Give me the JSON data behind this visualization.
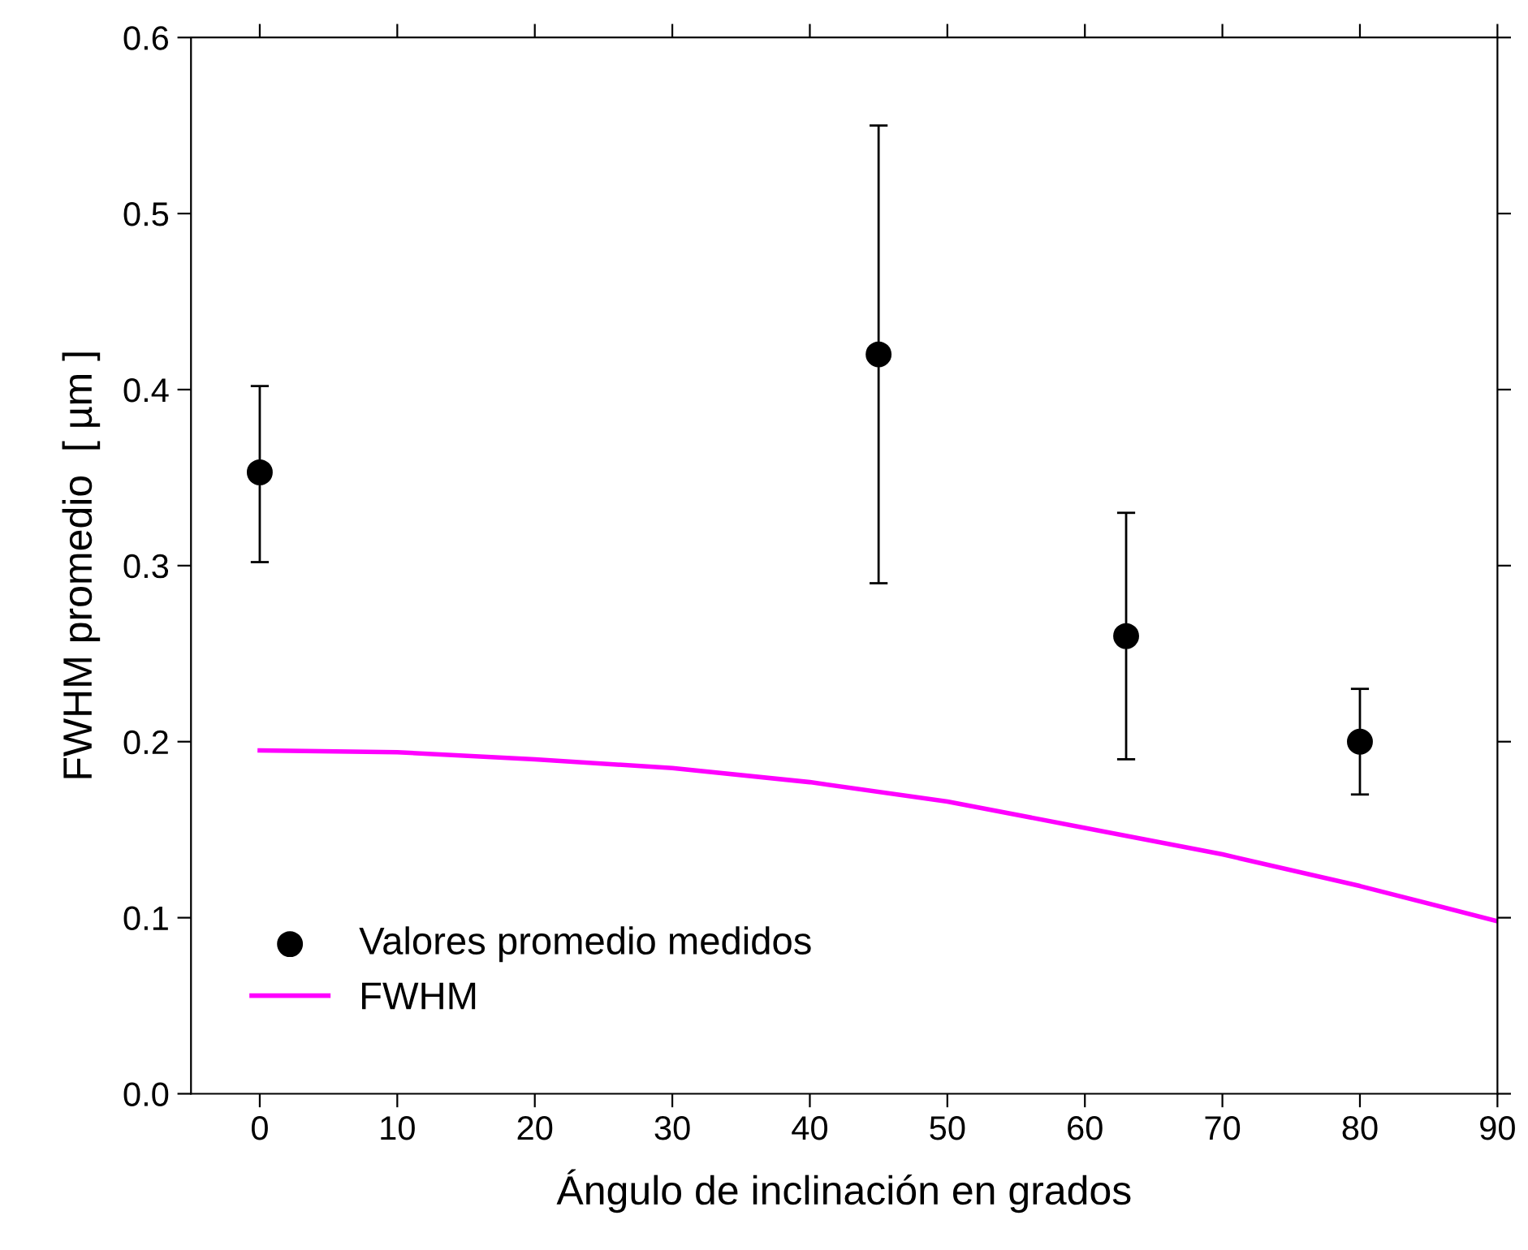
{
  "chart_data": {
    "type": "scatter",
    "xlabel": "Ángulo de inclinación en grados",
    "ylabel": "FWHM promedio  [ µm ]",
    "xlim": [
      -5,
      90
    ],
    "xticks": [
      0,
      10,
      20,
      30,
      40,
      50,
      60,
      70,
      80,
      90
    ],
    "ylim": [
      0,
      0.6
    ],
    "yticks": [
      {
        "value": 0,
        "label": "0.0"
      },
      0.1,
      0.2,
      0.3,
      0.4,
      0.5,
      0.6
    ],
    "grid": false,
    "legend": "bottom left",
    "series": [
      {
        "name": "Valores promedio medidos",
        "marker": "circle",
        "color": "#000000",
        "x": [
          0,
          45,
          63,
          80
        ],
        "values": [
          0.353,
          0.42,
          0.26,
          0.2
        ],
        "errors": [
          [
            0.302,
            0.402
          ],
          [
            0.29,
            0.55
          ],
          [
            0.19,
            0.33
          ],
          [
            0.17,
            0.23
          ]
        ]
      },
      {
        "name": "FWHM",
        "type": "line",
        "color": "#ff00ff",
        "line_style": "solid",
        "x": [
          0,
          10,
          20,
          30,
          40,
          50,
          60,
          70,
          80,
          90
        ],
        "values": [
          0.195,
          0.194,
          0.19,
          0.185,
          0.177,
          0.166,
          0.151,
          0.136,
          0.118,
          0.098
        ]
      }
    ]
  }
}
